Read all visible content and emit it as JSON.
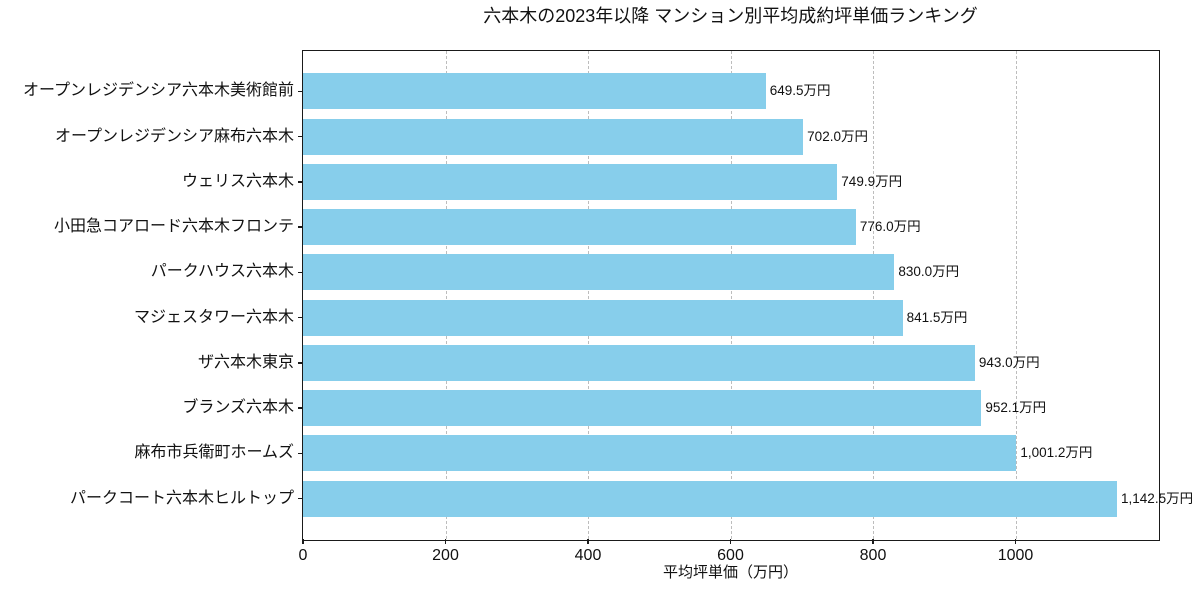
{
  "chart_data": {
    "type": "bar",
    "orientation": "horizontal",
    "title": "六本木の2023年以降 マンション別平均成約坪単価ランキング",
    "categories": [
      "オープンレジデンシア六本木美術館前",
      "オープンレジデンシア麻布六本木",
      "ウェリス六本木",
      "小田急コアロード六本木フロンテ",
      "パークハウス六本木",
      "マジェスタワー六本木",
      "ザ六本木東京",
      "ブランズ六本木",
      "麻布市兵衛町ホームズ",
      "パークコート六本木ヒルトップ"
    ],
    "values": [
      649.5,
      702.0,
      749.9,
      776.0,
      830.0,
      841.5,
      943.0,
      952.1,
      1001.2,
      1142.5
    ],
    "value_labels": [
      "649.5万円",
      "702.0万円",
      "749.9万円",
      "776.0万円",
      "830.0万円",
      "841.5万円",
      "943.0万円",
      "952.1万円",
      "1,001.2万円",
      "1,142.5万円"
    ],
    "xlabel": "平均坪単価（万円）",
    "ylabel": "",
    "xlim": [
      0,
      1200
    ],
    "xticks": [
      0,
      200,
      400,
      600,
      800,
      1000
    ],
    "grid": "vertical-dashed",
    "legend": "none",
    "bar_color": "#87CEEB",
    "grid_color": "#bdbdbd",
    "spine_color": "#1a1a1a",
    "text_color": "#111111",
    "background": "#ffffff"
  }
}
